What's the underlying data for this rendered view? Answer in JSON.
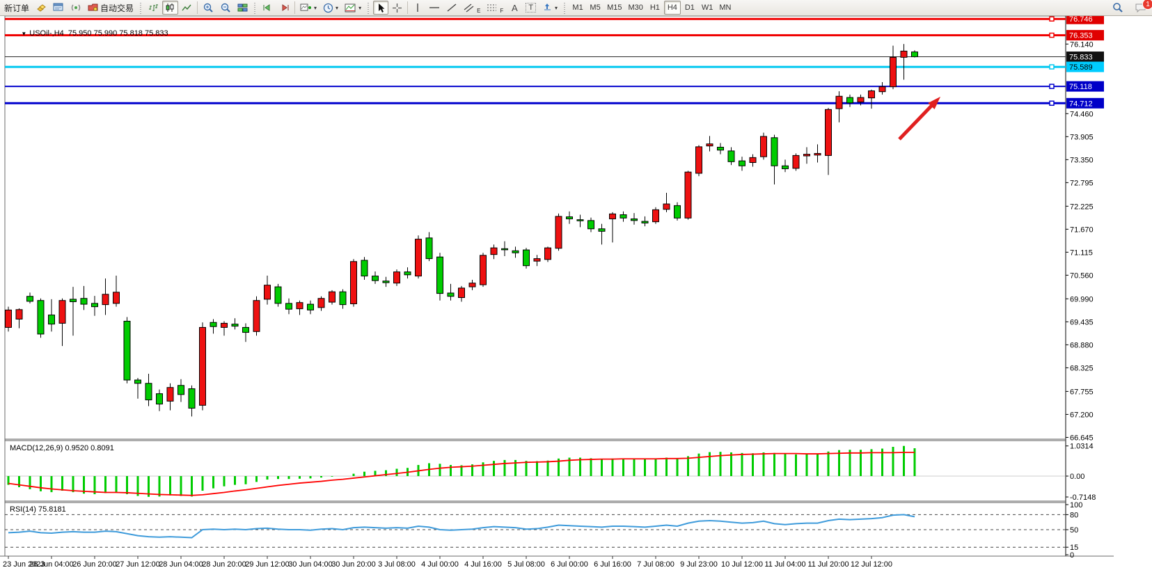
{
  "toolbar": {
    "new_order_label": "新订单",
    "autotrade_label": "自动交易",
    "timeframes": [
      "M1",
      "M5",
      "M15",
      "M30",
      "H1",
      "H4",
      "D1",
      "W1",
      "MN"
    ],
    "active_timeframe": "H4",
    "notification_count": "1",
    "glyphs": {
      "dropdown": "▾",
      "crosshair": "+",
      "vertical_line": "|",
      "horizontal_line": "—",
      "text_tool": "A",
      "label_tool": "T",
      "channel_suffix": "E",
      "fibo_suffix": "F"
    }
  },
  "chart_data": {
    "type": "candlestick",
    "title": "USOil-,H4  75.950 75.990 75.818 75.833",
    "symbol": "USOil-",
    "period": "H4",
    "ohlc_current": {
      "open": 75.95,
      "high": 75.99,
      "low": 75.818,
      "close": 75.833
    },
    "color_convention": {
      "up_body": "#ee1111",
      "down_body": "#00cc00",
      "outline": "#000000"
    },
    "ylim": [
      66.645,
      76.8
    ],
    "price_ticks": [
      76.14,
      74.46,
      73.905,
      73.35,
      72.795,
      72.225,
      71.67,
      71.115,
      70.56,
      69.99,
      69.435,
      68.88,
      68.325,
      67.755,
      67.2,
      66.645
    ],
    "price_lines": [
      {
        "value": 76.746,
        "label": "76.746",
        "color": "#f00000",
        "badge_bg": "#e00000",
        "badge_fg": "#ffffff",
        "width": 3
      },
      {
        "value": 76.353,
        "label": "76.353",
        "color": "#f00000",
        "badge_bg": "#e00000",
        "badge_fg": "#ffffff",
        "width": 3
      },
      {
        "value": 75.833,
        "label": "75.833",
        "color": "#2b2b2b",
        "badge_bg": "#111111",
        "badge_fg": "#ffffff",
        "width": 1
      },
      {
        "value": 75.589,
        "label": "75.589",
        "color": "#00c8f0",
        "badge_bg": "#00ccff",
        "badge_fg": "#000000",
        "width": 3
      },
      {
        "value": 75.118,
        "label": "75.118",
        "color": "#0000cd",
        "badge_bg": "#0000c8",
        "badge_fg": "#ffffff",
        "width": 2
      },
      {
        "value": 74.712,
        "label": "74.712",
        "color": "#0000cd",
        "badge_bg": "#0000c8",
        "badge_fg": "#ffffff",
        "width": 3
      }
    ],
    "time_labels": [
      "23 Jun 2023",
      "26 Jun 04:00",
      "26 Jun 20:00",
      "27 Jun 12:00",
      "28 Jun 04:00",
      "28 Jun 20:00",
      "29 Jun 12:00",
      "30 Jun 04:00",
      "30 Jun 20:00",
      "3 Jul 08:00",
      "4 Jul 00:00",
      "4 Jul 16:00",
      "5 Jul 08:00",
      "6 Jul 00:00",
      "6 Jul 16:00",
      "7 Jul 08:00",
      "9 Jul 23:00",
      "10 Jul 12:00",
      "11 Jul 04:00",
      "11 Jul 20:00",
      "12 Jul 12:00"
    ],
    "label_every_n_candles": 4,
    "candles": [
      [
        69.3,
        69.8,
        69.2,
        69.72
      ],
      [
        69.5,
        69.76,
        69.28,
        69.73
      ],
      [
        70.05,
        70.14,
        69.88,
        69.93
      ],
      [
        69.95,
        70.0,
        69.05,
        69.14
      ],
      [
        69.6,
        69.98,
        69.2,
        69.38
      ],
      [
        69.4,
        70.0,
        68.85,
        69.95
      ],
      [
        69.98,
        70.28,
        69.1,
        69.92
      ],
      [
        70.0,
        70.3,
        69.72,
        69.86
      ],
      [
        69.88,
        70.06,
        69.58,
        69.8
      ],
      [
        69.85,
        70.48,
        69.6,
        70.1
      ],
      [
        69.88,
        70.55,
        69.8,
        70.15
      ],
      [
        69.45,
        69.55,
        67.95,
        68.03
      ],
      [
        68.03,
        68.08,
        67.58,
        67.95
      ],
      [
        67.95,
        68.18,
        67.4,
        67.55
      ],
      [
        67.7,
        67.8,
        67.28,
        67.45
      ],
      [
        67.52,
        67.95,
        67.3,
        67.85
      ],
      [
        67.9,
        68.05,
        67.5,
        67.68
      ],
      [
        67.82,
        67.9,
        67.15,
        67.35
      ],
      [
        67.42,
        69.42,
        67.3,
        69.3
      ],
      [
        69.42,
        69.5,
        69.15,
        69.32
      ],
      [
        69.3,
        69.45,
        69.1,
        69.4
      ],
      [
        69.38,
        69.52,
        69.25,
        69.33
      ],
      [
        69.3,
        69.4,
        68.95,
        69.18
      ],
      [
        69.2,
        70.05,
        69.1,
        69.95
      ],
      [
        69.98,
        70.55,
        69.85,
        70.32
      ],
      [
        70.28,
        70.35,
        69.8,
        69.88
      ],
      [
        69.88,
        70.0,
        69.62,
        69.74
      ],
      [
        69.75,
        69.95,
        69.6,
        69.9
      ],
      [
        69.86,
        69.95,
        69.62,
        69.72
      ],
      [
        69.78,
        70.05,
        69.7,
        70.0
      ],
      [
        69.91,
        70.2,
        69.85,
        70.16
      ],
      [
        70.16,
        70.22,
        69.75,
        69.85
      ],
      [
        69.87,
        70.95,
        69.8,
        70.89
      ],
      [
        70.92,
        71.0,
        70.45,
        70.54
      ],
      [
        70.54,
        70.65,
        70.35,
        70.43
      ],
      [
        70.42,
        70.52,
        70.28,
        70.38
      ],
      [
        70.37,
        70.7,
        70.3,
        70.64
      ],
      [
        70.64,
        70.75,
        70.48,
        70.57
      ],
      [
        70.54,
        71.52,
        70.48,
        71.43
      ],
      [
        71.46,
        71.6,
        70.9,
        70.96
      ],
      [
        71.0,
        71.1,
        69.95,
        70.12
      ],
      [
        70.13,
        70.35,
        69.95,
        70.05
      ],
      [
        70.02,
        70.3,
        69.92,
        70.25
      ],
      [
        70.28,
        70.45,
        70.2,
        70.37
      ],
      [
        70.33,
        71.1,
        70.28,
        71.04
      ],
      [
        71.06,
        71.3,
        70.95,
        71.22
      ],
      [
        71.2,
        71.38,
        71.02,
        71.18
      ],
      [
        71.15,
        71.25,
        70.98,
        71.1
      ],
      [
        71.17,
        71.22,
        70.72,
        70.79
      ],
      [
        70.9,
        71.05,
        70.78,
        70.96
      ],
      [
        70.94,
        71.25,
        70.88,
        71.22
      ],
      [
        71.21,
        72.05,
        71.15,
        71.98
      ],
      [
        71.97,
        72.1,
        71.8,
        71.92
      ],
      [
        71.9,
        72.02,
        71.72,
        71.88
      ],
      [
        71.88,
        71.95,
        71.6,
        71.68
      ],
      [
        71.68,
        71.8,
        71.3,
        71.62
      ],
      [
        71.92,
        72.08,
        71.35,
        72.04
      ],
      [
        72.02,
        72.1,
        71.85,
        71.94
      ],
      [
        71.92,
        72.06,
        71.78,
        71.88
      ],
      [
        71.86,
        71.98,
        71.74,
        71.82
      ],
      [
        71.85,
        72.2,
        71.8,
        72.14
      ],
      [
        72.15,
        72.55,
        72.08,
        72.28
      ],
      [
        72.24,
        72.32,
        71.88,
        71.94
      ],
      [
        71.94,
        73.08,
        71.9,
        73.05
      ],
      [
        73.02,
        73.7,
        72.95,
        73.66
      ],
      [
        73.68,
        73.92,
        73.55,
        73.73
      ],
      [
        73.65,
        73.75,
        73.48,
        73.58
      ],
      [
        73.56,
        73.65,
        73.22,
        73.3
      ],
      [
        73.32,
        73.42,
        73.08,
        73.2
      ],
      [
        73.28,
        73.48,
        73.18,
        73.4
      ],
      [
        73.42,
        74.0,
        73.35,
        73.91
      ],
      [
        73.88,
        73.95,
        72.75,
        73.2
      ],
      [
        73.2,
        73.35,
        73.05,
        73.13
      ],
      [
        73.14,
        73.5,
        73.08,
        73.45
      ],
      [
        73.44,
        73.65,
        73.25,
        73.48
      ],
      [
        73.46,
        73.72,
        73.28,
        73.5
      ],
      [
        73.45,
        74.6,
        72.98,
        74.56
      ],
      [
        74.58,
        75.0,
        74.25,
        74.88
      ],
      [
        74.85,
        74.92,
        74.62,
        74.72
      ],
      [
        74.74,
        74.92,
        74.66,
        74.85
      ],
      [
        74.84,
        75.04,
        74.58,
        75.01
      ],
      [
        74.99,
        75.22,
        74.92,
        75.11
      ],
      [
        75.11,
        76.1,
        75.05,
        75.82
      ],
      [
        75.82,
        76.14,
        75.28,
        75.97
      ],
      [
        75.95,
        75.99,
        75.818,
        75.833
      ]
    ],
    "macd": {
      "label": "MACD(12,26,9) 0.9520 0.8091",
      "params": "12,26,9",
      "value_main": 0.952,
      "value_signal": 0.8091,
      "axis_ticks": [
        1.0314,
        0.0,
        -0.7148
      ],
      "histogram_color": "#00cc00",
      "signal_color": "#ff0000",
      "histogram": [
        -0.3,
        -0.38,
        -0.45,
        -0.52,
        -0.55,
        -0.5,
        -0.55,
        -0.6,
        -0.62,
        -0.58,
        -0.55,
        -0.62,
        -0.68,
        -0.71,
        -0.7,
        -0.66,
        -0.68,
        -0.7,
        -0.5,
        -0.42,
        -0.35,
        -0.3,
        -0.28,
        -0.2,
        -0.12,
        -0.1,
        -0.1,
        -0.09,
        -0.08,
        -0.05,
        -0.02,
        0.0,
        0.08,
        0.15,
        0.18,
        0.2,
        0.25,
        0.28,
        0.38,
        0.44,
        0.42,
        0.38,
        0.37,
        0.4,
        0.47,
        0.52,
        0.55,
        0.55,
        0.52,
        0.51,
        0.53,
        0.6,
        0.63,
        0.63,
        0.61,
        0.59,
        0.6,
        0.6,
        0.59,
        0.58,
        0.6,
        0.63,
        0.61,
        0.68,
        0.77,
        0.82,
        0.83,
        0.81,
        0.79,
        0.78,
        0.81,
        0.79,
        0.75,
        0.74,
        0.75,
        0.76,
        0.84,
        0.89,
        0.9,
        0.9,
        0.92,
        0.94,
        1.0,
        1.0314,
        0.952
      ],
      "signal": [
        -0.25,
        -0.3,
        -0.35,
        -0.4,
        -0.44,
        -0.47,
        -0.5,
        -0.52,
        -0.54,
        -0.56,
        -0.56,
        -0.57,
        -0.59,
        -0.61,
        -0.63,
        -0.64,
        -0.65,
        -0.66,
        -0.64,
        -0.6,
        -0.56,
        -0.51,
        -0.47,
        -0.42,
        -0.37,
        -0.32,
        -0.28,
        -0.24,
        -0.21,
        -0.18,
        -0.14,
        -0.11,
        -0.07,
        -0.03,
        0.01,
        0.05,
        0.09,
        0.13,
        0.18,
        0.23,
        0.27,
        0.3,
        0.32,
        0.34,
        0.37,
        0.4,
        0.43,
        0.45,
        0.47,
        0.48,
        0.49,
        0.51,
        0.54,
        0.56,
        0.57,
        0.58,
        0.58,
        0.59,
        0.59,
        0.59,
        0.59,
        0.6,
        0.6,
        0.61,
        0.64,
        0.67,
        0.7,
        0.72,
        0.74,
        0.75,
        0.76,
        0.77,
        0.77,
        0.77,
        0.76,
        0.76,
        0.77,
        0.78,
        0.79,
        0.79,
        0.8,
        0.8,
        0.8,
        0.81,
        0.8091
      ]
    },
    "rsi": {
      "label": "RSI(14) 75.8181",
      "period": 14,
      "value": 75.8181,
      "axis_ticks": [
        100,
        80,
        50,
        15,
        0
      ],
      "levels": [
        80,
        50,
        15
      ],
      "line_color": "#3e9bdb",
      "values": [
        44,
        45,
        47,
        44,
        43,
        45,
        46,
        45,
        45,
        47,
        46,
        42,
        38,
        36,
        35,
        36,
        35,
        34,
        50,
        51,
        50,
        51,
        50,
        52,
        53,
        51,
        50,
        50,
        49,
        51,
        52,
        50,
        54,
        55,
        54,
        53,
        54,
        53,
        57,
        55,
        50,
        49,
        50,
        51,
        54,
        56,
        55,
        54,
        51,
        52,
        55,
        59,
        58,
        57,
        56,
        55,
        57,
        57,
        56,
        55,
        57,
        59,
        57,
        63,
        67,
        68,
        67,
        65,
        63,
        64,
        67,
        62,
        60,
        62,
        63,
        63,
        68,
        71,
        70,
        71,
        72,
        74,
        79,
        80,
        75.82
      ]
    },
    "annotation_arrow": {
      "from": [
        1292,
        200
      ],
      "to": [
        1349,
        141
      ],
      "color": "#e02020"
    }
  }
}
